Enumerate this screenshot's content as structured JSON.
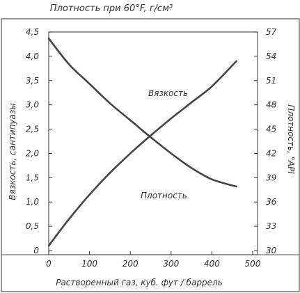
{
  "chart_data": {
    "type": "line",
    "title": "Плотность при 60°F, г/см³",
    "xlabel": "Растворенный газ, куб. фут / баррель",
    "ylabel_left": "Вязкость, сантипуазы",
    "ylabel_right": "Плотность, °API",
    "xlim": [
      0,
      500
    ],
    "ylim_left": [
      0,
      4.5
    ],
    "ylim_right": [
      30,
      57
    ],
    "x_ticks": [
      "0",
      "100",
      "200",
      "300",
      "400",
      "500"
    ],
    "y_left_ticks": [
      "0",
      "0,5",
      "1,0",
      "1,5",
      "2,0",
      "2,5",
      "3,0",
      "3,5",
      "4,0",
      "4,5"
    ],
    "y_right_ticks": [
      "30",
      "33",
      "36",
      "39",
      "42",
      "45",
      "48",
      "51",
      "54",
      "57"
    ],
    "grid": false,
    "series": [
      {
        "name": "Вязкость",
        "axis": "left",
        "x": [
          0,
          50,
          100,
          150,
          200,
          250,
          300,
          350,
          400,
          460
        ],
        "y": [
          0.1,
          0.65,
          1.15,
          1.6,
          2.0,
          2.37,
          2.72,
          3.05,
          3.38,
          3.9
        ]
      },
      {
        "name": "Плотность",
        "axis": "right",
        "x": [
          0,
          50,
          100,
          150,
          200,
          250,
          300,
          350,
          400,
          460
        ],
        "y": [
          56.2,
          53.0,
          50.6,
          48.2,
          46.1,
          44.0,
          42.0,
          40.2,
          38.8,
          37.9
        ]
      }
    ],
    "annotations": [
      "Вязкость",
      "Плотность"
    ]
  },
  "colors": {
    "ink": "#333333",
    "paper": "#ffffff"
  }
}
